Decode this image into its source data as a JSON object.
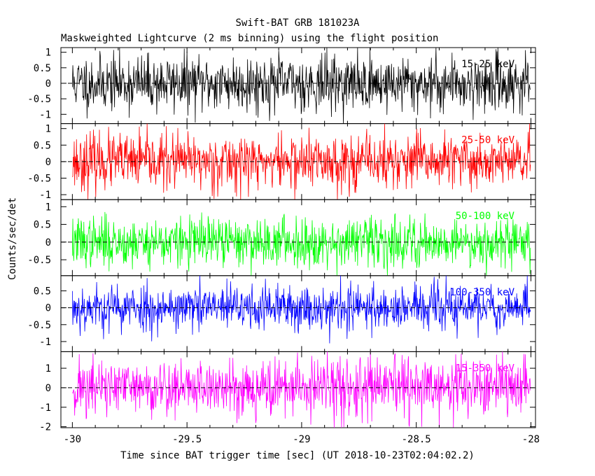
{
  "chart_data": {
    "type": "line",
    "title": "Swift-BAT GRB 181023A",
    "subtitle": "Maskweighted Lightcurve (2 ms binning) using the flight position",
    "xlabel": "Time since BAT trigger time [sec] (UT 2018-10-23T02:04:02.2)",
    "ylabel": "Counts/sec/det",
    "xlim": [
      -30.05,
      -27.98
    ],
    "x_ticks": [
      "-30",
      "-29.5",
      "-29",
      "-28.5",
      "-28"
    ],
    "bin_width_s": 0.002,
    "x_range": [
      -30.0,
      -28.0
    ],
    "grid": false,
    "panels": [
      {
        "name": "15-25 keV",
        "color": "#000000",
        "ylim": [
          -1.3,
          1.15
        ],
        "yticks": [
          "-1",
          "-0.5",
          "0",
          "0.5",
          "1"
        ],
        "noise_amplitude": 0.45,
        "seed": 11
      },
      {
        "name": "25-50 keV",
        "color": "#ff0000",
        "ylim": [
          -1.15,
          1.15
        ],
        "yticks": [
          "-1",
          "-0.5",
          "0",
          "0.5",
          "1"
        ],
        "noise_amplitude": 0.42,
        "seed": 23
      },
      {
        "name": "50-100 keV",
        "color": "#00ff00",
        "ylim": [
          -0.95,
          1.2
        ],
        "yticks": [
          "-0.5",
          "0",
          "0.5",
          "1"
        ],
        "noise_amplitude": 0.35,
        "seed": 37
      },
      {
        "name": "100-350 keV",
        "color": "#0000ff",
        "ylim": [
          -1.3,
          0.95
        ],
        "yticks": [
          "-1",
          "-0.5",
          "0",
          "0.5"
        ],
        "noise_amplitude": 0.35,
        "seed": 53
      },
      {
        "name": "15-350 keV",
        "color": "#ff00ff",
        "ylim": [
          -2.05,
          1.85
        ],
        "yticks": [
          "-2",
          "-1",
          "0",
          "1"
        ],
        "noise_amplitude": 0.75,
        "seed": 71
      }
    ]
  }
}
